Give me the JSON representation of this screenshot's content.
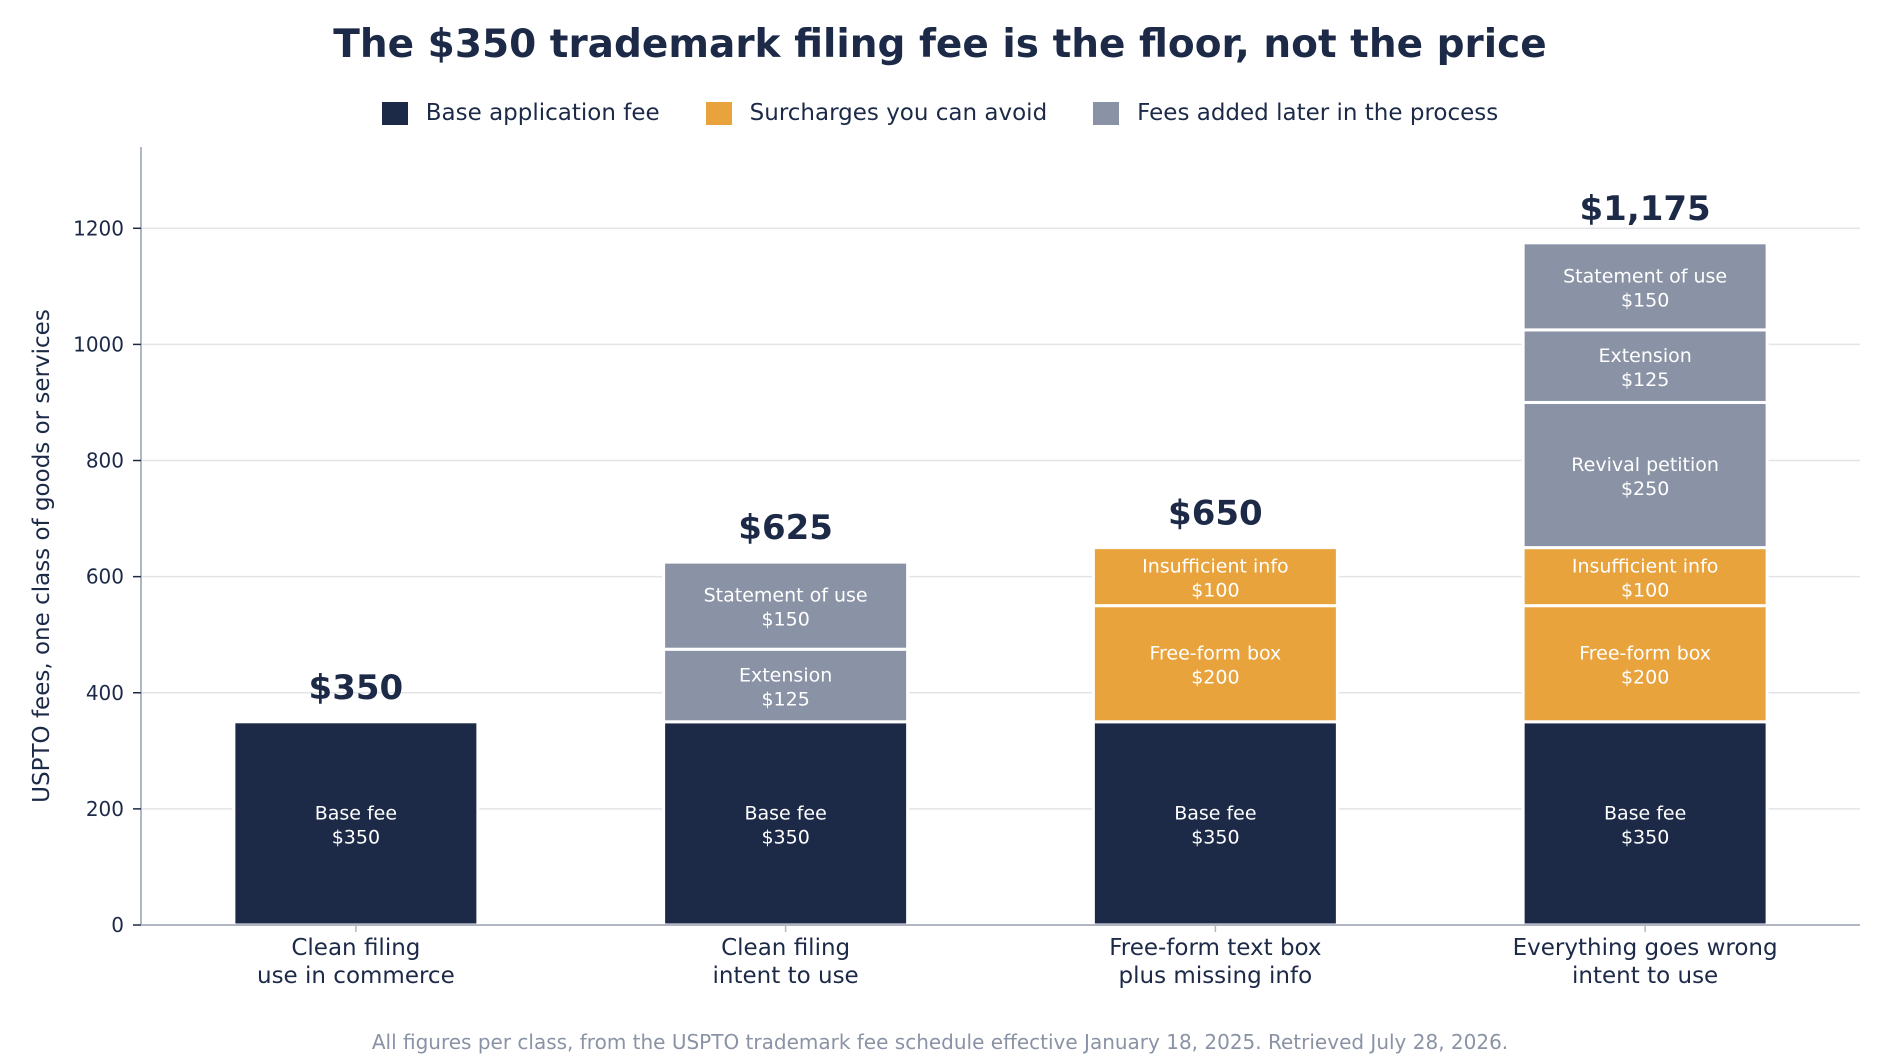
{
  "chart_data": {
    "type": "bar",
    "stacked": true,
    "title": "The $350 trademark filing fee is the floor, not the price",
    "ylabel": "USPTO fees, one class of goods or services",
    "xlabel": "",
    "ylim": [
      0,
      1340
    ],
    "yticks": [
      0,
      200,
      400,
      600,
      800,
      1000,
      1200
    ],
    "grid": true,
    "legend_position": "top-center",
    "colors": {
      "base": "#1c2a48",
      "avoid": "#e8a33d",
      "later": "#8a93a5",
      "grid": "#e2e4e8",
      "axis": "#b0b6c2",
      "text": "#1c2a48",
      "segment_border": "#ffffff"
    },
    "legend": [
      {
        "key": "base",
        "label": "Base application fee"
      },
      {
        "key": "avoid",
        "label": "Surcharges you can avoid"
      },
      {
        "key": "later",
        "label": "Fees added later in the process"
      }
    ],
    "categories": [
      {
        "label_lines": [
          "Clean filing",
          "use in commerce"
        ],
        "total_label": "$350",
        "segments": [
          {
            "type": "base",
            "name": "Base fee",
            "value": 350,
            "value_label": "$350"
          }
        ]
      },
      {
        "label_lines": [
          "Clean filing",
          "intent to use"
        ],
        "total_label": "$625",
        "segments": [
          {
            "type": "base",
            "name": "Base fee",
            "value": 350,
            "value_label": "$350"
          },
          {
            "type": "later",
            "name": "Extension",
            "value": 125,
            "value_label": "$125"
          },
          {
            "type": "later",
            "name": "Statement of use",
            "value": 150,
            "value_label": "$150"
          }
        ]
      },
      {
        "label_lines": [
          "Free-form text box",
          "plus missing info"
        ],
        "total_label": "$650",
        "segments": [
          {
            "type": "base",
            "name": "Base fee",
            "value": 350,
            "value_label": "$350"
          },
          {
            "type": "avoid",
            "name": "Free-form box",
            "value": 200,
            "value_label": "$200"
          },
          {
            "type": "avoid",
            "name": "Insufficient info",
            "value": 100,
            "value_label": "$100"
          }
        ]
      },
      {
        "label_lines": [
          "Everything goes wrong",
          "intent to use"
        ],
        "total_label": "$1,175",
        "segments": [
          {
            "type": "base",
            "name": "Base fee",
            "value": 350,
            "value_label": "$350"
          },
          {
            "type": "avoid",
            "name": "Free-form box",
            "value": 200,
            "value_label": "$200"
          },
          {
            "type": "avoid",
            "name": "Insufficient info",
            "value": 100,
            "value_label": "$100"
          },
          {
            "type": "later",
            "name": "Revival petition",
            "value": 250,
            "value_label": "$250"
          },
          {
            "type": "later",
            "name": "Extension",
            "value": 125,
            "value_label": "$125"
          },
          {
            "type": "later",
            "name": "Statement of use",
            "value": 150,
            "value_label": "$150"
          }
        ]
      }
    ],
    "footnote": "All figures per class, from the USPTO trademark fee schedule effective January 18, 2025. Retrieved July 28, 2026."
  }
}
